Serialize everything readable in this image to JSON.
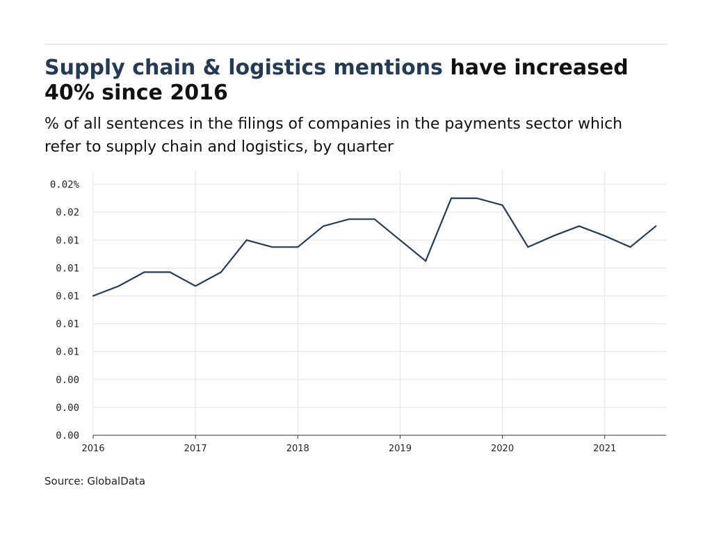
{
  "header": {
    "title_highlight": "Supply chain & logistics mentions",
    "title_rest": " have increased 40% since 2016",
    "subtitle": "% of all sentences in the filings of companies in the payments sector which refer to supply chain and logistics, by quarter"
  },
  "footer": {
    "source": "Source: GlobalData"
  },
  "colors": {
    "line": "#243b55",
    "highlight": "#243b55",
    "grid": "#e3e3e3",
    "axis": "#333333"
  },
  "chart_data": {
    "type": "line",
    "title": "Supply chain & logistics mentions have increased 40% since 2016",
    "subtitle": "% of all sentences in the filings of companies in the payments sector which refer to supply chain and logistics, by quarter",
    "xlabel": "",
    "ylabel": "",
    "x": [
      "2016 Q1",
      "2016 Q2",
      "2016 Q3",
      "2016 Q4",
      "2017 Q1",
      "2017 Q2",
      "2017 Q3",
      "2017 Q4",
      "2018 Q1",
      "2018 Q2",
      "2018 Q3",
      "2018 Q4",
      "2019 Q1",
      "2019 Q2",
      "2019 Q3",
      "2019 Q4",
      "2020 Q1",
      "2020 Q2",
      "2020 Q3",
      "2020 Q4",
      "2021 Q1",
      "2021 Q2",
      "2021 Q3"
    ],
    "x_range": [
      2016,
      2021.6
    ],
    "x_ticks": [
      "2016",
      "2017",
      "2018",
      "2019",
      "2020",
      "2021"
    ],
    "series": [
      {
        "values": [
          0.01,
          0.0107,
          0.0117,
          0.0117,
          0.0107,
          0.0117,
          0.014,
          0.0135,
          0.0135,
          0.015,
          0.0155,
          0.0155,
          0.014,
          0.0125,
          0.017,
          0.017,
          0.0165,
          0.0135,
          0.0143,
          0.015,
          0.0143,
          0.0135,
          0.015
        ]
      }
    ],
    "y_range": [
      0.0,
      0.019
    ],
    "y_ticks": [
      {
        "value": 0.0,
        "label": "0.00"
      },
      {
        "value": 0.002,
        "label": "0.00"
      },
      {
        "value": 0.004,
        "label": "0.00"
      },
      {
        "value": 0.006,
        "label": "0.01"
      },
      {
        "value": 0.008,
        "label": "0.01"
      },
      {
        "value": 0.01,
        "label": "0.01"
      },
      {
        "value": 0.012,
        "label": "0.01"
      },
      {
        "value": 0.014,
        "label": "0.01"
      },
      {
        "value": 0.016,
        "label": "0.02"
      },
      {
        "value": 0.018,
        "label": "0.02%"
      }
    ],
    "grid": true,
    "legend": "none"
  }
}
